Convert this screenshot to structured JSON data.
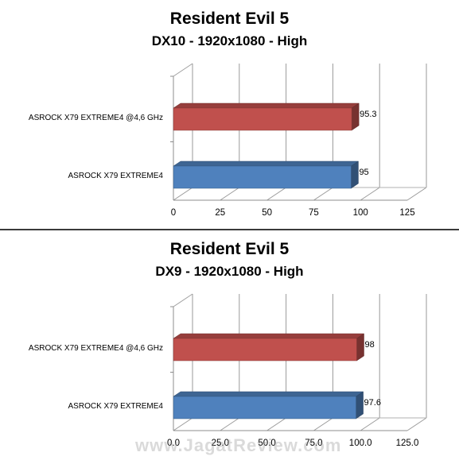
{
  "watermark": "www.JagatReview.com",
  "chart_data": [
    {
      "type": "bar",
      "orientation": "horizontal",
      "title": "Resident Evil 5",
      "subtitle": "DX10 - 1920x1080 - High",
      "categories": [
        "ASROCK X79 EXTREME4 @4,6 GHz",
        "ASROCK X79 EXTREME4"
      ],
      "values": [
        95.3,
        95
      ],
      "value_labels": [
        "95.3",
        "95"
      ],
      "colors": [
        "#c0504d",
        "#4f81bd"
      ],
      "xlim": [
        0,
        125
      ],
      "xticks": [
        "0",
        "25",
        "50",
        "75",
        "100",
        "125"
      ],
      "grid": true,
      "three_d": true
    },
    {
      "type": "bar",
      "orientation": "horizontal",
      "title": "Resident Evil 5",
      "subtitle": "DX9 - 1920x1080 - High",
      "categories": [
        "ASROCK X79 EXTREME4 @4,6 GHz",
        "ASROCK X79 EXTREME4"
      ],
      "values": [
        98,
        97.6
      ],
      "value_labels": [
        "98",
        "97.6"
      ],
      "colors": [
        "#c0504d",
        "#4f81bd"
      ],
      "xlim": [
        0,
        125
      ],
      "xticks": [
        "0.0",
        "25.0",
        "50.0",
        "75.0",
        "100.0",
        "125.0"
      ],
      "grid": true,
      "three_d": true
    }
  ]
}
